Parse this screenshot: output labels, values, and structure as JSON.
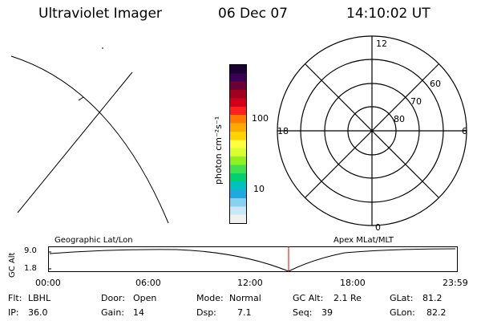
{
  "header": {
    "instrument": "Ultraviolet Imager",
    "date": "06 Dec 07",
    "time": "14:10:02 UT"
  },
  "colorbar": {
    "unit_label": "photon cm⁻²s⁻¹",
    "tick_labels": [
      "100",
      "10"
    ],
    "colors": [
      "#1a0033",
      "#3a0055",
      "#6a0033",
      "#a00020",
      "#d00018",
      "#ff2020",
      "#ff7a00",
      "#ffaa00",
      "#ffd200",
      "#ffff40",
      "#d8ff30",
      "#90f020",
      "#40e050",
      "#00d070",
      "#00c0c0",
      "#20a8e0",
      "#8ad0f0",
      "#c8e8f8",
      "#f0f0f0"
    ]
  },
  "polar_plot": {
    "lat_labels": [
      "60",
      "70",
      "80"
    ],
    "mlt_labels": {
      "top": "12",
      "left": "18",
      "right": "6",
      "bottom": "0"
    }
  },
  "timeline": {
    "y_axis_title": "GC Alt",
    "y_ticks": [
      "9.0",
      "1.8"
    ],
    "left_title": "Geographic Lat/Lon",
    "right_title": "Apex MLat/MLT",
    "x_ticks": [
      "00:00",
      "06:00",
      "12:00",
      "18:00",
      "23:59"
    ],
    "current_time_marker": "14:10"
  },
  "status": {
    "row1": [
      {
        "label": "Flt:",
        "value": "LBHL"
      },
      {
        "label": "Door:",
        "value": "Open"
      },
      {
        "label": "Mode:",
        "value": "Normal"
      },
      {
        "label": "GC Alt:",
        "value": "2.1 Re"
      },
      {
        "label": "GLat:",
        "value": "81.2"
      }
    ],
    "row2": [
      {
        "label": "IP:",
        "value": "36.0"
      },
      {
        "label": "Gain:",
        "value": "14"
      },
      {
        "label": "Dsp:",
        "value": "7.1"
      },
      {
        "label": "Seq:",
        "value": "39"
      },
      {
        "label": "GLon:",
        "value": "82.2"
      }
    ]
  }
}
